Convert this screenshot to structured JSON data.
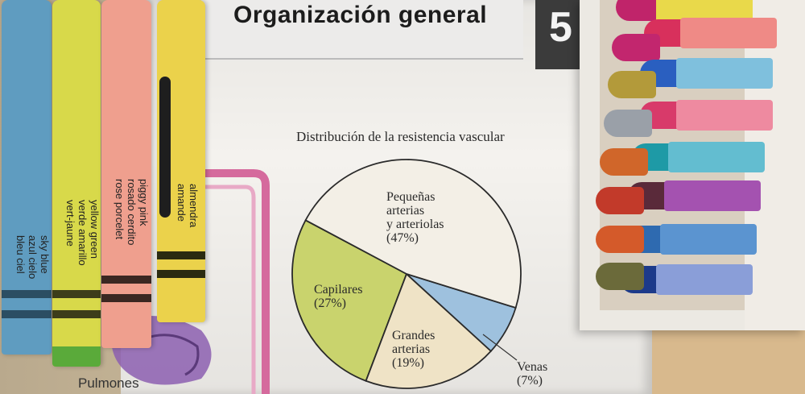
{
  "header": {
    "title": "Organización general",
    "chapter": "5"
  },
  "chart_data": {
    "type": "pie",
    "title": "Distribución de la resistencia vascular",
    "slices": [
      {
        "label": "Pequeñas arterias y arteriolas",
        "value": 47,
        "color": "#f3efe6"
      },
      {
        "label": "Venas",
        "value": 7,
        "color": "#9ec1de"
      },
      {
        "label": "Grandes arterias",
        "value": 19,
        "color": "#efe3c6"
      },
      {
        "label": "Capilares",
        "value": 27,
        "color": "#c9d36d"
      }
    ],
    "labels": {
      "small_arteries": [
        "Pequeñas",
        "arterias",
        "y arteriolas",
        "(47%)"
      ],
      "capillaries": [
        "Capilares",
        "(27%)"
      ],
      "large_arteries": [
        "Grandes",
        "arterias",
        "(19%)"
      ],
      "veins": [
        "Venas",
        "(7%)"
      ]
    }
  },
  "figure": {
    "lungs_label": "Pulmones"
  },
  "crayons": [
    {
      "color": "#5f9cc0",
      "lines": [
        "sky blue",
        "azul cielo",
        "bleu ciel"
      ]
    },
    {
      "color": "#d8d94a",
      "lines": [
        "yellow green",
        "verde amarillo",
        "vert-jaune"
      ]
    },
    {
      "color": "#ef9f8e",
      "lines": [
        "piggy pink",
        "rosado cerdito",
        "rose porcelet"
      ]
    },
    {
      "color": "#ebd24b",
      "lines": [
        "almendra",
        "amande"
      ]
    }
  ]
}
